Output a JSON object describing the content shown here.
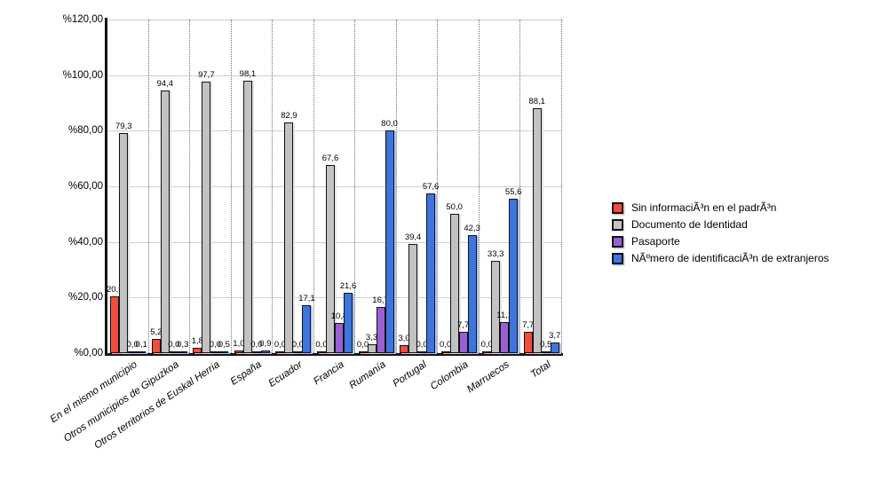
{
  "chart_data": {
    "type": "bar",
    "title": "",
    "xlabel": "",
    "ylabel": "",
    "ylim": [
      0,
      120
    ],
    "grid": true,
    "legend_position": "right",
    "y_ticks": [
      "%0,00",
      "%20,00",
      "%40,00",
      "%60,00",
      "%80,00",
      "%100,00",
      "%120,00"
    ],
    "categories": [
      "En el mismo municipio",
      "Otros municipios de Gipuzkoa",
      "Otros territorios de Euskal Herria",
      "España",
      "Ecuador",
      "Francia",
      "Rumanía",
      "Portugal",
      "Colombia",
      "Marruecos",
      "Total"
    ],
    "series": [
      {
        "name": "Sin informaciÃ³n en el padrÃ³n",
        "color": "#F14C3C",
        "shadow": "#F9B2A6",
        "values": [
          20.5,
          5.2,
          1.8,
          1.0,
          0.0,
          0.0,
          0.0,
          3.0,
          0.0,
          0.0,
          7.7
        ],
        "labels": [
          "20,5",
          "5,2",
          "1,8",
          "1,0",
          "0,0",
          "0,0",
          "0,0",
          "3,0",
          "0,0",
          "0,0",
          "7,7"
        ]
      },
      {
        "name": "Documento de Identidad",
        "color": "#C2C2C2",
        "shadow": "#E4E4E4",
        "values": [
          79.3,
          94.4,
          97.7,
          98.1,
          82.9,
          67.6,
          3.3,
          39.4,
          50.0,
          33.3,
          88.1
        ],
        "labels": [
          "79,3",
          "94,4",
          "97,7",
          "98,1",
          "82,9",
          "67,6",
          "3,3",
          "39,4",
          "50,0",
          "33,3",
          "88,1"
        ]
      },
      {
        "name": "Pasaporte",
        "color": "#9A60D1",
        "shadow": "#D0B4EE",
        "values": [
          0.0,
          0.0,
          0.0,
          0.0,
          0.0,
          10.8,
          16.7,
          0.0,
          7.7,
          11.1,
          0.5
        ],
        "labels": [
          "0,0",
          "0,0",
          "0,0",
          "0,0",
          "0,0",
          "10,8",
          "16,7",
          "0,0",
          "7,7",
          "11,1",
          "0,5"
        ]
      },
      {
        "name": "NÃºmero de identificaciÃ³n de extranjeros",
        "color": "#3E74DE",
        "shadow": "#ACC6F3",
        "values": [
          0.1,
          0.3,
          0.5,
          0.9,
          17.1,
          21.6,
          80.0,
          57.6,
          42.3,
          55.6,
          3.7
        ],
        "labels": [
          "0,1",
          "0,3",
          "0,5",
          "0,9",
          "17,1",
          "21,6",
          "80,0",
          "57,6",
          "42,3",
          "55,6",
          "3,7"
        ]
      }
    ]
  }
}
